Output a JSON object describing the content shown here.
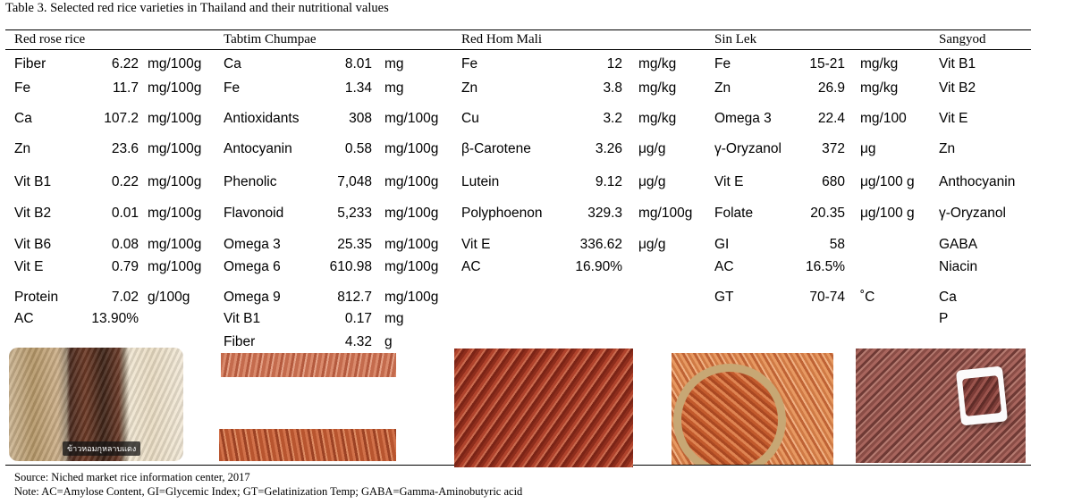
{
  "caption": "Table 3. Selected red rice varieties in Thailand and their nutritional values",
  "headers": [
    "Red rose rice",
    "Tabtim Chumpae",
    "Red Hom Mali",
    "Sin Lek",
    "Sangyod"
  ],
  "red_rose": [
    {
      "name": "Fiber",
      "value": "6.22",
      "unit": "mg/100g"
    },
    {
      "name": "Fe",
      "value": "11.7",
      "unit": "mg/100g"
    },
    {
      "name": "Ca",
      "value": "107.2",
      "unit": "mg/100g"
    },
    {
      "name": "Zn",
      "value": "23.6",
      "unit": "mg/100g"
    },
    {
      "name": "Vit B1",
      "value": "0.22",
      "unit": "mg/100g"
    },
    {
      "name": "Vit B2",
      "value": "0.01",
      "unit": "mg/100g"
    },
    {
      "name": "Vit B6",
      "value": "0.08",
      "unit": "mg/100g"
    },
    {
      "name": "Vit E",
      "value": "0.79",
      "unit": "mg/100g"
    },
    {
      "name": "Protein",
      "value": "7.02",
      "unit": "g/100g"
    },
    {
      "name": "AC",
      "value": "13.90%",
      "unit": ""
    }
  ],
  "tabtim": [
    {
      "name": "Ca",
      "value": "8.01",
      "unit": "mg"
    },
    {
      "name": "Fe",
      "value": "1.34",
      "unit": "mg"
    },
    {
      "name": "Antioxidants",
      "value": "308",
      "unit": "mg/100g"
    },
    {
      "name": "Antocyanin",
      "value": "0.58",
      "unit": "mg/100g"
    },
    {
      "name": "Phenolic",
      "value": "7,048",
      "unit": "mg/100g"
    },
    {
      "name": "Flavonoid",
      "value": "5,233",
      "unit": "mg/100g"
    },
    {
      "name": "Omega 3",
      "value": "25.35",
      "unit": "mg/100g"
    },
    {
      "name": "Omega 6",
      "value": "610.98",
      "unit": "mg/100g"
    },
    {
      "name": "Omega 9",
      "value": "812.7",
      "unit": "mg/100g"
    },
    {
      "name": "Vit B1",
      "value": "0.17",
      "unit": "mg"
    },
    {
      "name": "Fiber",
      "value": "4.32",
      "unit": "g"
    }
  ],
  "redhom": [
    {
      "name": "Fe",
      "value": "12",
      "unit": "mg/kg"
    },
    {
      "name": "Zn",
      "value": "3.8",
      "unit": "mg/kg"
    },
    {
      "name": "Cu",
      "value": "3.2",
      "unit": "mg/kg"
    },
    {
      "name": "β-Carotene",
      "value": "3.26",
      "unit": "μg/g"
    },
    {
      "name": "Lutein",
      "value": "9.12",
      "unit": "μg/g"
    },
    {
      "name": "Polyphoenon",
      "value": "329.3",
      "unit": "mg/100g"
    },
    {
      "name": "Vit E",
      "value": "336.62",
      "unit": "μg/g"
    },
    {
      "name": "AC",
      "value": "16.90%",
      "unit": ""
    }
  ],
  "sinlek": [
    {
      "name": "Fe",
      "value": "15-21",
      "unit": "mg/kg"
    },
    {
      "name": "Zn",
      "value": "26.9",
      "unit": "mg/kg"
    },
    {
      "name": "Omega 3",
      "value": "22.4",
      "unit": "mg/100"
    },
    {
      "name": "γ-Oryzanol",
      "value": "372",
      "unit": "μg"
    },
    {
      "name": "Vit E",
      "value": "680",
      "unit": "μg/100 g"
    },
    {
      "name": "Folate",
      "value": "20.35",
      "unit": "μg/100 g"
    },
    {
      "name": "GI",
      "value": "58",
      "unit": ""
    },
    {
      "name": "AC",
      "value": "16.5%",
      "unit": ""
    },
    {
      "name": "GT",
      "value": "70-74",
      "unit": "˚C"
    }
  ],
  "sangyod": [
    "Vit B1",
    "Vit B2",
    "Vit E",
    "Zn",
    "Anthocyanin",
    "γ-Oryzanol",
    "GABA",
    "Niacin",
    "Ca",
    "P"
  ],
  "photo_tag": "ข้าวหอมกุหลาบแดง",
  "source": "Source:  Niched market rice information center, 2017",
  "note": "Note: AC=Amylose Content, GI=Glycemic Index; GT=Gelatinization Temp; GABA=Gamma-Aminobutyric acid"
}
